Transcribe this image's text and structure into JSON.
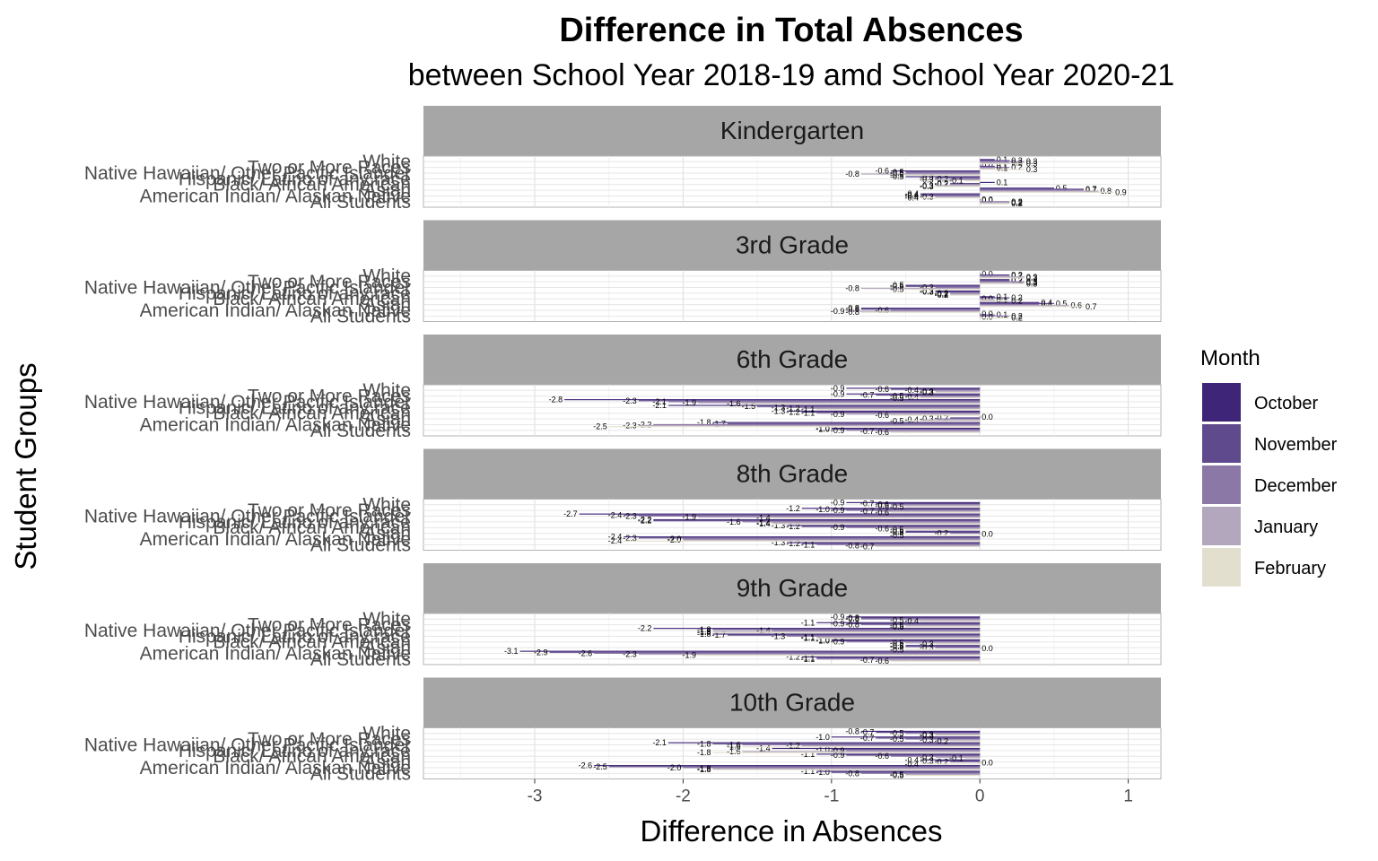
{
  "chart_data": {
    "type": "bar",
    "orientation": "horizontal",
    "title": "Difference in Total Absences",
    "subtitle": "between School Year 2018-19 amd School Year 2020-21",
    "xlabel": "Difference in Absences",
    "ylabel": "Student Groups",
    "xlim": [
      -3.75,
      1.22
    ],
    "xticks": [
      -3,
      -2,
      -1,
      0,
      1
    ],
    "grid": true,
    "legend_title": "Month",
    "legend_position": "right",
    "months": [
      "October",
      "November",
      "December",
      "January",
      "February"
    ],
    "colors": [
      "#3f2577",
      "#604a8e",
      "#8b78a7",
      "#b3a7bd",
      "#e3dfcf"
    ],
    "groups": [
      "All Students",
      "American Indian/ Alaskan Native",
      "Asian",
      "Black/ African American",
      "Hispanic/ Latino of any race",
      "Native Hawaiian/ Other Pacific Islander",
      "Two or More Races",
      "White"
    ],
    "panels": [
      {
        "name": "Kindergarten",
        "values": [
          [
            0.0,
            0.0,
            0.2,
            0.2,
            0.2
          ],
          [
            -0.4,
            -0.4,
            -0.4,
            -0.3,
            -0.4
          ],
          [
            0.5,
            0.7,
            0.7,
            0.8,
            0.9
          ],
          [
            0.1,
            -0.2,
            -0.2,
            -0.3,
            -0.3
          ],
          [
            -0.5,
            -0.3,
            -0.2,
            -0.3,
            -0.1
          ],
          [
            -0.6,
            -0.5,
            -0.5,
            -0.8,
            -0.5
          ],
          [
            0.0,
            0.1,
            0.2,
            0.1,
            0.3
          ],
          [
            0.1,
            0.2,
            0.3,
            0.2,
            0.3
          ]
        ]
      },
      {
        "name": "3rd Grade",
        "values": [
          [
            0.0,
            0.1,
            0.2,
            0.0,
            0.2
          ],
          [
            -0.8,
            -0.8,
            -0.6,
            -0.9,
            -0.8
          ],
          [
            0.4,
            0.5,
            0.4,
            0.6,
            0.7
          ],
          [
            0.1,
            0.2,
            0.0,
            0.1,
            0.2
          ],
          [
            -0.3,
            -0.3,
            -0.2,
            -0.2,
            -0.2
          ],
          [
            -0.5,
            -0.5,
            -0.3,
            -0.8,
            -0.5
          ],
          [
            0.2,
            0.2,
            0.3,
            0.3,
            0.3
          ],
          [
            0.0,
            0.2,
            0.2,
            0.3,
            0.3
          ]
        ]
      },
      {
        "name": "6th Grade",
        "values": [
          [
            -1.0,
            -1.0,
            -0.9,
            -0.7,
            -0.6
          ],
          [
            -1.8,
            -1.7,
            -2.2,
            -2.3,
            -2.5
          ],
          [
            0.0,
            -0.2,
            -0.3,
            -0.4,
            -0.5
          ],
          [
            -1.3,
            -1.2,
            -1.1,
            -0.9,
            -0.6
          ],
          [
            -2.1,
            -1.5,
            -1.3,
            -1.2,
            -1.1
          ],
          [
            -2.8,
            -2.3,
            -2.1,
            -1.9,
            -1.6
          ],
          [
            -0.9,
            -0.7,
            -0.5,
            -0.4,
            -0.5
          ],
          [
            -0.9,
            -0.6,
            -0.4,
            -0.3,
            -0.3
          ]
        ]
      },
      {
        "name": "8th Grade",
        "values": [
          [
            -1.3,
            -1.2,
            -1.1,
            -0.8,
            -0.7
          ],
          [
            -2.4,
            -2.3,
            -2.0,
            -2.0,
            -2.4
          ],
          [
            -0.5,
            -0.5,
            -0.2,
            0.0,
            -0.5
          ],
          [
            -1.3,
            -1.2,
            -0.9,
            -0.6,
            -0.5
          ],
          [
            -2.2,
            -2.2,
            -1.6,
            -1.4,
            -1.4
          ],
          [
            -2.7,
            -2.4,
            -2.3,
            -1.9,
            -1.4
          ],
          [
            -1.2,
            -1.0,
            -0.9,
            -0.7,
            -0.6
          ],
          [
            -0.9,
            -0.7,
            -0.6,
            -0.6,
            -0.5
          ]
        ]
      },
      {
        "name": "9th Grade",
        "values": [
          [
            -1.2,
            -1.1,
            -1.1,
            -0.7,
            -0.6
          ],
          [
            -3.1,
            -2.9,
            -2.6,
            -2.3,
            -1.9
          ],
          [
            -0.5,
            -0.5,
            -0.3,
            0.0,
            -0.5
          ],
          [
            -1.0,
            -1.0,
            -0.9,
            -0.5,
            -0.3
          ],
          [
            -1.8,
            -1.7,
            -1.3,
            -1.1,
            -1.1
          ],
          [
            -2.2,
            -1.8,
            -1.4,
            -1.8,
            -1.8
          ],
          [
            -1.1,
            -0.9,
            -0.8,
            -0.5,
            -0.5
          ],
          [
            -0.9,
            -0.8,
            -0.8,
            -0.5,
            -0.4
          ]
        ]
      },
      {
        "name": "10th Grade",
        "values": [
          [
            -1.1,
            -1.0,
            -0.8,
            -0.5,
            -0.5
          ],
          [
            -2.6,
            -2.5,
            -2.0,
            -1.8,
            -1.8
          ],
          [
            -0.4,
            -0.3,
            -0.2,
            0.0,
            -0.4
          ],
          [
            -1.1,
            -0.9,
            -0.6,
            -0.3,
            -0.1
          ],
          [
            -1.4,
            -1.0,
            -0.9,
            -1.6,
            -1.8
          ],
          [
            -2.1,
            -1.8,
            -1.6,
            -1.2,
            -1.6
          ],
          [
            -1.0,
            -0.7,
            -0.5,
            -0.3,
            -0.2
          ],
          [
            -0.8,
            -0.7,
            -0.5,
            -0.3,
            -0.3
          ]
        ]
      }
    ]
  }
}
